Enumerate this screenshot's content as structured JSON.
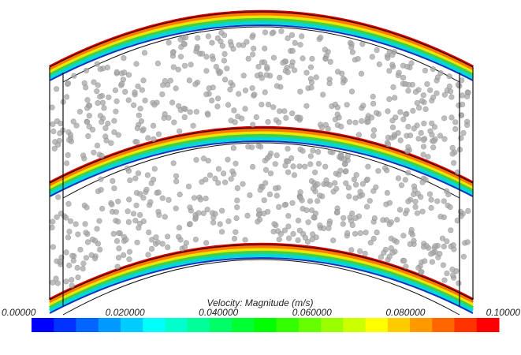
{
  "colorbar": {
    "title": "Velocity: Magnitude (m/s)",
    "range": [
      0,
      0.1
    ],
    "ticks": [
      {
        "value": 0,
        "label": "0.00000"
      },
      {
        "value": 0.02,
        "label": "0.020000"
      },
      {
        "value": 0.04,
        "label": "0.040000"
      },
      {
        "value": 0.06,
        "label": "0.060000"
      },
      {
        "value": 0.08,
        "label": "0.080000"
      },
      {
        "value": 0.1,
        "label": "0.10000"
      }
    ]
  }
}
